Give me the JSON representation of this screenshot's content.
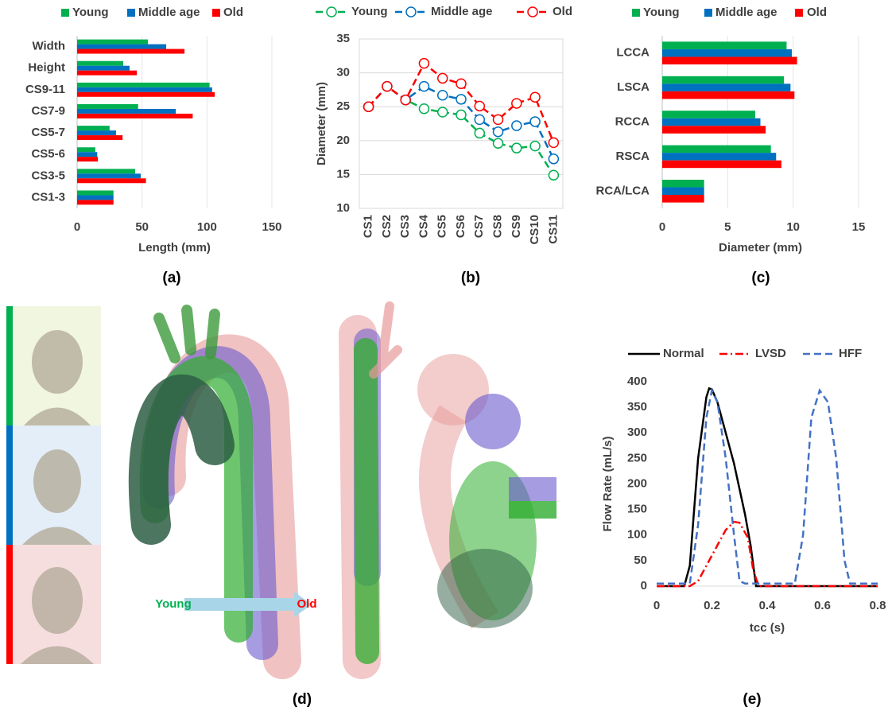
{
  "figure": {
    "panel_labels": [
      "(a)",
      "(b)",
      "(c)",
      "(d)",
      "(e)"
    ],
    "illustration": {
      "start_label": "Young",
      "end_label": "Old"
    }
  },
  "chart_data": [
    {
      "type": "bar",
      "orientation": "horizontal",
      "xlabel": "Length (mm)",
      "grid": true,
      "legend": "top",
      "categories": [
        "Width",
        "Height",
        "CS9-11",
        "CS7-9",
        "CS5-7",
        "CS5-6",
        "CS3-5",
        "CS1-3"
      ],
      "series": [
        {
          "name": "Young",
          "color": "#00b050",
          "values": [
            54.5,
            35.5,
            102,
            47,
            25,
            14,
            44.7,
            28
          ]
        },
        {
          "name": "Middle age",
          "color": "#0070c0",
          "values": [
            68.6,
            40.4,
            104,
            76,
            30,
            15.5,
            49,
            28
          ]
        },
        {
          "name": "Old",
          "color": "#ff0000",
          "values": [
            82.7,
            46,
            106,
            89,
            35,
            16,
            53,
            28
          ]
        }
      ],
      "xlim": [
        0,
        150
      ],
      "xticks": [
        0,
        50,
        100,
        150
      ]
    },
    {
      "type": "line",
      "ylabel": "Diameter (mm)",
      "grid": true,
      "legend": "top",
      "markers": "open-circle",
      "categories": [
        "CS1",
        "CS2",
        "CS3",
        "CS4",
        "CS5",
        "CS6",
        "CS7",
        "CS8",
        "CS9",
        "CS10",
        "CS11"
      ],
      "series": [
        {
          "name": "Young",
          "color": "#00b050",
          "line_style": "dashed",
          "values": [
            25,
            28,
            26,
            24.7,
            24.2,
            23.8,
            21.1,
            19.6,
            18.9,
            19.2,
            14.9
          ]
        },
        {
          "name": "Middle age",
          "color": "#0070c0",
          "line_style": "dashed",
          "values": [
            25,
            28,
            26,
            28,
            26.7,
            26.1,
            23.1,
            21.3,
            22.2,
            22.8,
            17.3
          ]
        },
        {
          "name": "Old",
          "color": "#ff0000",
          "line_style": "dashed",
          "values": [
            25,
            28,
            26,
            31.4,
            29.2,
            28.4,
            25.1,
            23.1,
            25.5,
            26.4,
            19.7
          ]
        }
      ],
      "ylim": [
        10,
        35
      ],
      "yticks": [
        10,
        15,
        20,
        25,
        30,
        35
      ]
    },
    {
      "type": "bar",
      "orientation": "horizontal",
      "xlabel": "Diameter (mm)",
      "grid": true,
      "legend": "top",
      "categories": [
        "LCCA",
        "LSCA",
        "RCCA",
        "RSCA",
        "RCA/LCA"
      ],
      "series": [
        {
          "name": "Young",
          "color": "#00b050",
          "values": [
            9.5,
            9.3,
            7.1,
            8.3,
            3.2
          ]
        },
        {
          "name": "Middle age",
          "color": "#0070c0",
          "values": [
            9.9,
            9.8,
            7.5,
            8.7,
            3.2
          ]
        },
        {
          "name": "Old",
          "color": "#ff0000",
          "values": [
            10.3,
            10.1,
            7.9,
            9.1,
            3.2
          ]
        }
      ],
      "xlim": [
        0,
        15
      ],
      "xticks": [
        0,
        5,
        10,
        15
      ]
    },
    {
      "type": "line",
      "xlabel": "tcc (s)",
      "ylabel": "Flow Rate (mL/s)",
      "grid": false,
      "legend": "top",
      "series": [
        {
          "name": "Normal",
          "color": "#000000",
          "line_style": "solid",
          "x": [
            0,
            0.1,
            0.12,
            0.15,
            0.18,
            0.19,
            0.2,
            0.22,
            0.25,
            0.28,
            0.3,
            0.32,
            0.34,
            0.36,
            0.8
          ],
          "values": [
            0,
            0,
            40,
            250,
            370,
            387,
            385,
            360,
            300,
            240,
            190,
            140,
            80,
            0,
            0
          ]
        },
        {
          "name": "LVSD",
          "color": "#ff0000",
          "line_style": "dash-dot",
          "x": [
            0,
            0.12,
            0.15,
            0.18,
            0.22,
            0.25,
            0.28,
            0.3,
            0.33,
            0.35,
            0.37,
            0.8
          ],
          "values": [
            0,
            0,
            10,
            40,
            80,
            110,
            126,
            124,
            95,
            30,
            0,
            0
          ]
        },
        {
          "name": "HFF",
          "color": "#4472c4",
          "line_style": "dashed",
          "x": [
            0,
            0.12,
            0.15,
            0.18,
            0.2,
            0.22,
            0.25,
            0.28,
            0.3,
            0.32,
            0.5,
            0.53,
            0.56,
            0.59,
            0.62,
            0.65,
            0.68,
            0.7,
            0.8
          ],
          "values": [
            5,
            5,
            120,
            330,
            383,
            360,
            250,
            100,
            10,
            5,
            5,
            100,
            330,
            383,
            360,
            250,
            50,
            5,
            5
          ]
        }
      ],
      "xlim": [
        0,
        0.8
      ],
      "xticks": [
        0,
        0.2,
        0.4,
        0.6,
        0.8
      ],
      "ylim": [
        0,
        400
      ],
      "yticks": [
        0,
        50,
        100,
        150,
        200,
        250,
        300,
        350,
        400
      ]
    }
  ]
}
